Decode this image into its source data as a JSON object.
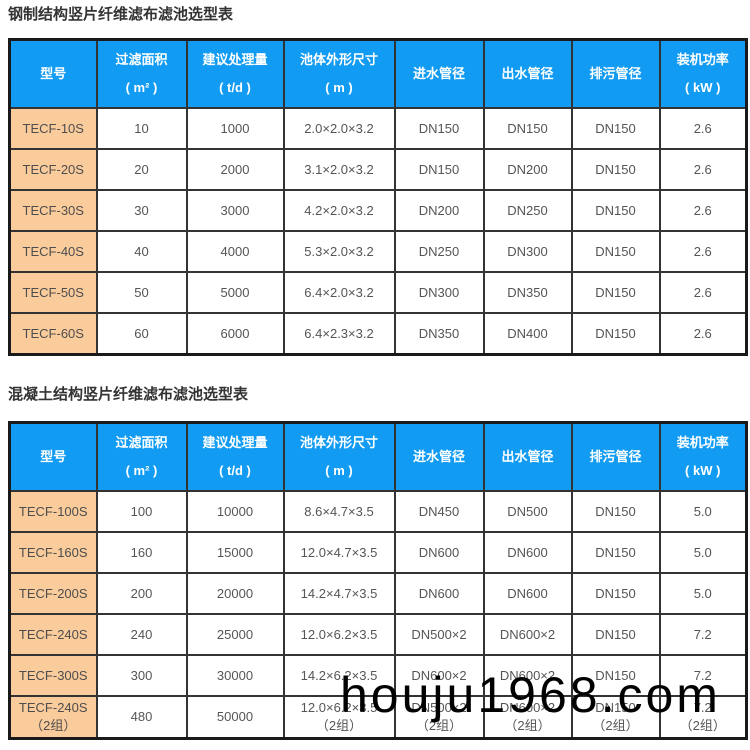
{
  "page": {
    "watermark": "houju1968.com"
  },
  "colors": {
    "header_bg": "#129BF2",
    "model_cell_bg": "#FACC9C",
    "border": "#333333",
    "header_text": "#FFFFFF",
    "body_text": "#555555",
    "title_text": "#333333",
    "watermark_text": "#000000"
  },
  "columns": [
    {
      "label": "型号",
      "unit": ""
    },
    {
      "label": "过滤面积",
      "unit": "( m² )"
    },
    {
      "label": "建议处理量",
      "unit": "( t/d )"
    },
    {
      "label": "池体外形尺寸",
      "unit": "( m )"
    },
    {
      "label": "进水管径",
      "unit": ""
    },
    {
      "label": "出水管径",
      "unit": ""
    },
    {
      "label": "排污管径",
      "unit": ""
    },
    {
      "label": "装机功率",
      "unit": "( kW )"
    }
  ],
  "tables": [
    {
      "title": "钢制结构竖片纤维滤布滤池选型表",
      "rows": [
        [
          "TECF-10S",
          "10",
          "1000",
          "2.0×2.0×3.2",
          "DN150",
          "DN150",
          "DN150",
          "2.6"
        ],
        [
          "TECF-20S",
          "20",
          "2000",
          "3.1×2.0×3.2",
          "DN150",
          "DN200",
          "DN150",
          "2.6"
        ],
        [
          "TECF-30S",
          "30",
          "3000",
          "4.2×2.0×3.2",
          "DN200",
          "DN250",
          "DN150",
          "2.6"
        ],
        [
          "TECF-40S",
          "40",
          "4000",
          "5.3×2.0×3.2",
          "DN250",
          "DN300",
          "DN150",
          "2.6"
        ],
        [
          "TECF-50S",
          "50",
          "5000",
          "6.4×2.0×3.2",
          "DN300",
          "DN350",
          "DN150",
          "2.6"
        ],
        [
          "TECF-60S",
          "60",
          "6000",
          "6.4×2.3×3.2",
          "DN350",
          "DN400",
          "DN150",
          "2.6"
        ]
      ]
    },
    {
      "title": "混凝土结构竖片纤维滤布滤池选型表",
      "rows": [
        [
          "TECF-100S",
          "100",
          "10000",
          "8.6×4.7×3.5",
          "DN450",
          "DN500",
          "DN150",
          "5.0"
        ],
        [
          "TECF-160S",
          "160",
          "15000",
          "12.0×4.7×3.5",
          "DN600",
          "DN600",
          "DN150",
          "5.0"
        ],
        [
          "TECF-200S",
          "200",
          "20000",
          "14.2×4.7×3.5",
          "DN600",
          "DN600",
          "DN150",
          "5.0"
        ],
        [
          "TECF-240S",
          "240",
          "25000",
          "12.0×6.2×3.5",
          "DN500×2",
          "DN600×2",
          "DN150",
          "7.2"
        ],
        [
          "TECF-300S",
          "300",
          "30000",
          "14.2×6.2×3.5",
          "DN600×2",
          "DN600×2",
          "DN150",
          "7.2"
        ],
        [
          "TECF-240S\n（2组）",
          "480",
          "50000",
          "12.0×6.2×3.5\n（2组）",
          "DN500×2\n（2组）",
          "DN600×2\n（2组）",
          "DN150\n（2组）",
          "7.2\n（2组）"
        ]
      ]
    }
  ]
}
